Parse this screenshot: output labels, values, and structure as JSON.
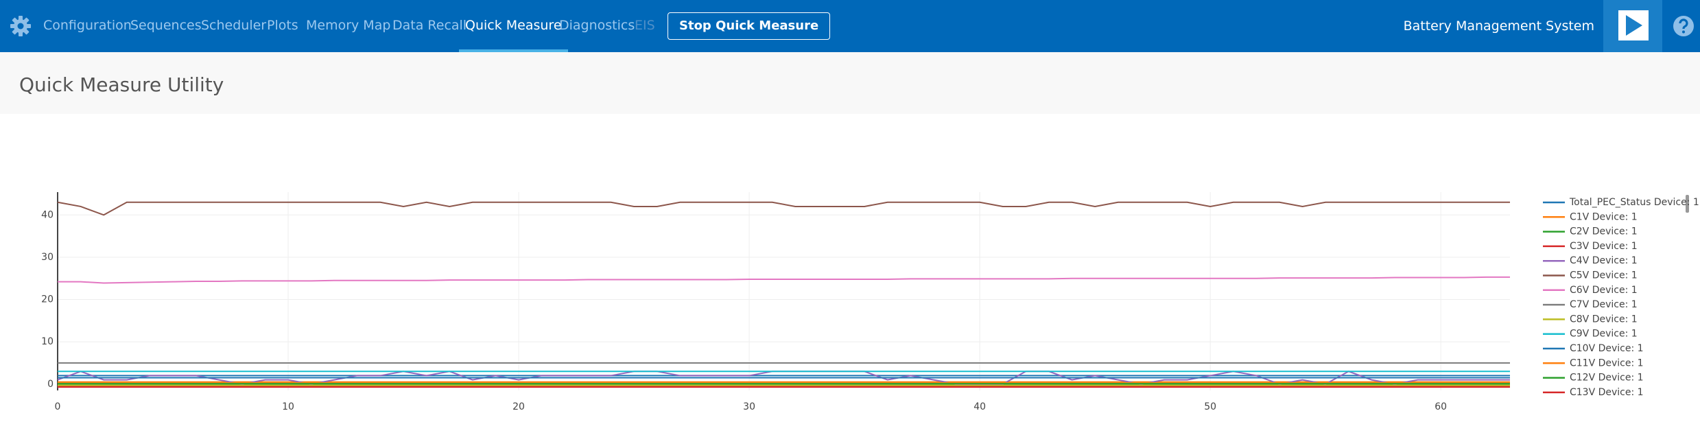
{
  "nav": {
    "items": [
      "Configuration",
      "Sequences",
      "Scheduler",
      "Plots",
      "Memory Map",
      "Data Recall",
      "Quick Measure",
      "Diagnostics",
      "EIS"
    ],
    "button": "Stop Quick Measure",
    "app_title": "Battery Management System"
  },
  "page": {
    "title": "Quick Measure Utility"
  },
  "chart_data": {
    "type": "line",
    "x": [
      0,
      1,
      2,
      3,
      4,
      5,
      6,
      7,
      8,
      9,
      10,
      11,
      12,
      13,
      14,
      15,
      16,
      17,
      18,
      19,
      20,
      21,
      22,
      23,
      24,
      25,
      26,
      27,
      28,
      29,
      30,
      31,
      32,
      33,
      34,
      35,
      36,
      37,
      38,
      39,
      40,
      41,
      42,
      43,
      44,
      45,
      46,
      47,
      48,
      49,
      50,
      51,
      52,
      53,
      54,
      55,
      56,
      57,
      58,
      59,
      60,
      61,
      62,
      63
    ],
    "xlim": [
      0,
      63
    ],
    "xticks": [
      0,
      10,
      20,
      30,
      40,
      50,
      60
    ],
    "ylim": [
      -1.5,
      45.4
    ],
    "yticks": [
      0,
      10,
      20,
      30,
      40
    ],
    "grid": true,
    "series": [
      {
        "name": "Total_PEC_Status Device: 1",
        "color": "#1f77b4",
        "values": [
          2,
          2,
          2,
          2,
          2,
          2,
          2,
          2,
          2,
          2,
          2,
          2,
          2,
          2,
          2,
          2,
          2,
          2,
          2,
          2,
          2,
          2,
          2,
          2,
          2,
          2,
          2,
          2,
          2,
          2,
          2,
          2,
          2,
          2,
          2,
          2,
          2,
          2,
          2,
          2,
          2,
          2,
          2,
          2,
          2,
          2,
          2,
          2,
          2,
          2,
          2,
          2,
          2,
          2,
          2,
          2,
          2,
          2,
          2,
          2,
          2,
          2,
          2,
          2
        ]
      },
      {
        "name": "C1V Device: 1",
        "color": "#ff7f0e",
        "values": [
          0.5,
          0.5,
          0.5,
          0.5,
          0.5,
          0.5,
          0.5,
          0.5,
          0.5,
          0.5,
          0.5,
          0.5,
          0.5,
          0.5,
          0.5,
          0.5,
          0.5,
          0.5,
          0.5,
          0.5,
          0.5,
          0.5,
          0.5,
          0.5,
          0.5,
          0.5,
          0.5,
          0.5,
          0.5,
          0.5,
          0.5,
          0.5,
          0.5,
          0.5,
          0.5,
          0.5,
          0.5,
          0.5,
          0.5,
          0.5,
          0.5,
          0.5,
          0.5,
          0.5,
          0.5,
          0.5,
          0.5,
          0.5,
          0.5,
          0.5,
          0.5,
          0.5,
          0.5,
          0.5,
          0.5,
          0.5,
          0.5,
          0.5,
          0.5,
          0.5,
          0.5,
          0.5,
          0.5,
          0.5
        ]
      },
      {
        "name": "C2V Device: 1",
        "color": "#2ca02c",
        "values": [
          0,
          0,
          0,
          0,
          0,
          0,
          0,
          0,
          0,
          0,
          0,
          0,
          0,
          0,
          0,
          0,
          0,
          0,
          0,
          0,
          0,
          0,
          0,
          0,
          0,
          0,
          0,
          0,
          0,
          0,
          0,
          0,
          0,
          0,
          0,
          0,
          0,
          0,
          0,
          0,
          0,
          0,
          0,
          0,
          0,
          0,
          0,
          0,
          0,
          0,
          0,
          0,
          0,
          0,
          0,
          0,
          0,
          0,
          0,
          0,
          0,
          0,
          0,
          0
        ]
      },
      {
        "name": "C3V Device: 1",
        "color": "#d62728",
        "values": [
          -0.5,
          -0.5,
          -0.5,
          -0.5,
          -0.5,
          -0.5,
          -0.5,
          -0.5,
          -0.5,
          -0.5,
          -0.5,
          -0.5,
          -0.5,
          -0.5,
          -0.5,
          -0.5,
          -0.5,
          -0.5,
          -0.5,
          -0.5,
          -0.5,
          -0.5,
          -0.5,
          -0.5,
          -0.5,
          -0.5,
          -0.5,
          -0.5,
          -0.5,
          -0.5,
          -0.5,
          -0.5,
          -0.5,
          -0.5,
          -0.5,
          -0.5,
          -0.5,
          -0.5,
          -0.5,
          -0.5,
          -0.5,
          -0.5,
          -0.5,
          -0.5,
          -0.5,
          -0.5,
          -0.5,
          -0.5,
          -0.5,
          -0.5,
          -0.5,
          -0.5,
          -0.5,
          -0.5,
          -0.5,
          -0.5,
          -0.5,
          -0.5,
          -0.5,
          -0.5,
          -0.5,
          -0.5,
          -0.5,
          -0.5
        ]
      },
      {
        "name": "C4V Device: 1",
        "color": "#9467bd",
        "values": [
          1,
          3,
          1,
          1,
          2,
          2,
          2,
          1,
          0,
          1,
          1,
          0,
          1,
          2,
          2,
          3,
          2,
          3,
          1,
          2,
          1,
          2,
          2,
          2,
          2,
          3,
          3,
          2,
          2,
          2,
          2,
          3,
          3,
          3,
          3,
          3,
          1,
          2,
          1,
          0,
          0,
          0,
          3,
          3,
          1,
          2,
          1,
          0,
          1,
          1,
          2,
          3,
          2,
          0,
          1,
          0,
          3,
          1,
          0,
          1,
          1,
          1,
          1,
          1
        ]
      },
      {
        "name": "C5V Device: 1",
        "color": "#8c564b",
        "values": [
          43,
          42,
          40,
          43,
          43,
          43,
          43,
          43,
          43,
          43,
          43,
          43,
          43,
          43,
          43,
          42,
          43,
          42,
          43,
          43,
          43,
          43,
          43,
          43,
          43,
          42,
          42,
          43,
          43,
          43,
          43,
          43,
          42,
          42,
          42,
          42,
          43,
          43,
          43,
          43,
          43,
          42,
          42,
          43,
          43,
          42,
          43,
          43,
          43,
          43,
          42,
          43,
          43,
          43,
          42,
          43,
          43,
          43,
          43,
          43,
          43,
          43,
          43,
          43
        ]
      },
      {
        "name": "C6V Device: 1",
        "color": "#e377c2",
        "values": [
          24.2,
          24.2,
          23.9,
          24.0,
          24.1,
          24.2,
          24.3,
          24.3,
          24.4,
          24.4,
          24.4,
          24.4,
          24.5,
          24.5,
          24.5,
          24.5,
          24.5,
          24.6,
          24.6,
          24.6,
          24.6,
          24.6,
          24.6,
          24.7,
          24.7,
          24.7,
          24.7,
          24.7,
          24.7,
          24.7,
          24.8,
          24.8,
          24.8,
          24.8,
          24.8,
          24.8,
          24.8,
          24.9,
          24.9,
          24.9,
          24.9,
          24.9,
          24.9,
          24.9,
          25.0,
          25.0,
          25.0,
          25.0,
          25.0,
          25.0,
          25.0,
          25.0,
          25.0,
          25.1,
          25.1,
          25.1,
          25.1,
          25.1,
          25.2,
          25.2,
          25.2,
          25.2,
          25.3,
          25.3
        ]
      },
      {
        "name": "C7V Device: 1",
        "color": "#7f7f7f",
        "values": [
          5,
          5,
          5,
          5,
          5,
          5,
          5,
          5,
          5,
          5,
          5,
          5,
          5,
          5,
          5,
          5,
          5,
          5,
          5,
          5,
          5,
          5,
          5,
          5,
          5,
          5,
          5,
          5,
          5,
          5,
          5,
          5,
          5,
          5,
          5,
          5,
          5,
          5,
          5,
          5,
          5,
          5,
          5,
          5,
          5,
          5,
          5,
          5,
          5,
          5,
          5,
          5,
          5,
          5,
          5,
          5,
          5,
          5,
          5,
          5,
          5,
          5,
          5,
          5
        ]
      },
      {
        "name": "C8V Device: 1",
        "color": "#bcbd22",
        "values": [
          -0.3,
          -0.3,
          -0.3,
          -0.3,
          -0.3,
          -0.3,
          -0.3,
          -0.3,
          -0.3,
          -0.3,
          -0.3,
          -0.3,
          -0.3,
          -0.3,
          -0.3,
          -0.3,
          -0.3,
          -0.3,
          -0.3,
          -0.3,
          -0.3,
          -0.3,
          -0.3,
          -0.3,
          -0.3,
          -0.3,
          -0.3,
          -0.3,
          -0.3,
          -0.3,
          -0.3,
          -0.3,
          -0.3,
          -0.3,
          -0.3,
          -0.3,
          -0.3,
          -0.3,
          -0.3,
          -0.3,
          -0.3,
          -0.3,
          -0.3,
          -0.3,
          -0.3,
          -0.3,
          -0.3,
          -0.3,
          -0.3,
          -0.3,
          -0.3,
          -0.3,
          -0.3,
          -0.3,
          -0.3,
          -0.3,
          -0.3,
          -0.3,
          -0.3,
          -0.3,
          -0.3,
          -0.3,
          -0.3,
          -0.3
        ]
      },
      {
        "name": "C9V Device: 1",
        "color": "#17becf",
        "values": [
          3,
          3,
          3,
          3,
          3,
          3,
          3,
          3,
          3,
          3,
          3,
          3,
          3,
          3,
          3,
          3,
          3,
          3,
          3,
          3,
          3,
          3,
          3,
          3,
          3,
          3,
          3,
          3,
          3,
          3,
          3,
          3,
          3,
          3,
          3,
          3,
          3,
          3,
          3,
          3,
          3,
          3,
          3,
          3,
          3,
          3,
          3,
          3,
          3,
          3,
          3,
          3,
          3,
          3,
          3,
          3,
          3,
          3,
          3,
          3,
          3,
          3,
          3,
          3
        ]
      },
      {
        "name": "C10V Device: 1",
        "color": "#1f77b4",
        "values": [
          1.5,
          1.5,
          1.5,
          1.5,
          1.5,
          1.5,
          1.5,
          1.5,
          1.5,
          1.5,
          1.5,
          1.5,
          1.5,
          1.5,
          1.5,
          1.5,
          1.5,
          1.5,
          1.5,
          1.5,
          1.5,
          1.5,
          1.5,
          1.5,
          1.5,
          1.5,
          1.5,
          1.5,
          1.5,
          1.5,
          1.5,
          1.5,
          1.5,
          1.5,
          1.5,
          1.5,
          1.5,
          1.5,
          1.5,
          1.5,
          1.5,
          1.5,
          1.5,
          1.5,
          1.5,
          1.5,
          1.5,
          1.5,
          1.5,
          1.5,
          1.5,
          1.5,
          1.5,
          1.5,
          1.5,
          1.5,
          1.5,
          1.5,
          1.5,
          1.5,
          1.5,
          1.5,
          1.5,
          1.5
        ]
      },
      {
        "name": "C11V Device: 1",
        "color": "#ff7f0e",
        "values": [
          0.3,
          0.3,
          0.3,
          0.3,
          0.3,
          0.3,
          0.3,
          0.3,
          0.3,
          0.3,
          0.3,
          0.3,
          0.3,
          0.3,
          0.3,
          0.3,
          0.3,
          0.3,
          0.3,
          0.3,
          0.3,
          0.3,
          0.3,
          0.3,
          0.3,
          0.3,
          0.3,
          0.3,
          0.3,
          0.3,
          0.3,
          0.3,
          0.3,
          0.3,
          0.3,
          0.3,
          0.3,
          0.3,
          0.3,
          0.3,
          0.3,
          0.3,
          0.3,
          0.3,
          0.3,
          0.3,
          0.3,
          0.3,
          0.3,
          0.3,
          0.3,
          0.3,
          0.3,
          0.3,
          0.3,
          0.3,
          0.3,
          0.3,
          0.3,
          0.3,
          0.3,
          0.3,
          0.3,
          0.3
        ]
      },
      {
        "name": "C12V Device: 1",
        "color": "#2ca02c",
        "values": [
          0.1,
          0.1,
          0.1,
          0.1,
          0.1,
          0.1,
          0.1,
          0.1,
          0.1,
          0.1,
          0.1,
          0.1,
          0.1,
          0.1,
          0.1,
          0.1,
          0.1,
          0.1,
          0.1,
          0.1,
          0.1,
          0.1,
          0.1,
          0.1,
          0.1,
          0.1,
          0.1,
          0.1,
          0.1,
          0.1,
          0.1,
          0.1,
          0.1,
          0.1,
          0.1,
          0.1,
          0.1,
          0.1,
          0.1,
          0.1,
          0.1,
          0.1,
          0.1,
          0.1,
          0.1,
          0.1,
          0.1,
          0.1,
          0.1,
          0.1,
          0.1,
          0.1,
          0.1,
          0.1,
          0.1,
          0.1,
          0.1,
          0.1,
          0.1,
          0.1,
          0.1,
          0.1,
          0.1,
          0.1
        ]
      },
      {
        "name": "C13V Device: 1",
        "color": "#d62728",
        "values": [
          -0.7,
          -0.7,
          -0.7,
          -0.7,
          -0.7,
          -0.7,
          -0.7,
          -0.7,
          -0.7,
          -0.7,
          -0.7,
          -0.7,
          -0.7,
          -0.7,
          -0.7,
          -0.7,
          -0.7,
          -0.7,
          -0.7,
          -0.7,
          -0.7,
          -0.7,
          -0.7,
          -0.7,
          -0.7,
          -0.7,
          -0.7,
          -0.7,
          -0.7,
          -0.7,
          -0.7,
          -0.7,
          -0.7,
          -0.7,
          -0.7,
          -0.7,
          -0.7,
          -0.7,
          -0.7,
          -0.7,
          -0.7,
          -0.7,
          -0.7,
          -0.7,
          -0.7,
          -0.7,
          -0.7,
          -0.7,
          -0.7,
          -0.7,
          -0.7,
          -0.7,
          -0.7,
          -0.7,
          -0.7,
          -0.7,
          -0.7,
          -0.7,
          -0.7,
          -0.7,
          -0.7,
          -0.7,
          -0.7,
          -0.7
        ]
      }
    ]
  }
}
